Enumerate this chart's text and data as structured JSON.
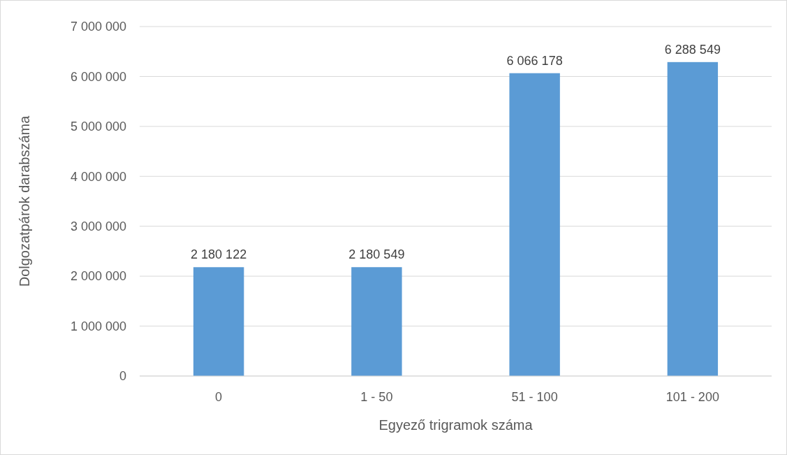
{
  "chart_data": {
    "type": "bar",
    "xlabel": "Egyező trigramok száma",
    "ylabel": "Dolgozatpárok darabszáma",
    "categories": [
      "0",
      "1 - 50",
      "51 - 100",
      "101 - 200"
    ],
    "values": [
      2180122,
      2180549,
      6066178,
      6288549
    ],
    "value_labels": [
      "2 180 122",
      "2 180 549",
      "6 066 178",
      "6 288 549"
    ],
    "color": "#5b9bd5",
    "ylim": [
      0,
      7000000
    ],
    "yticks": [
      {
        "value": 0,
        "label": "0"
      },
      {
        "value": 1000000,
        "label": "1 000 000"
      },
      {
        "value": 2000000,
        "label": "2 000 000"
      },
      {
        "value": 3000000,
        "label": "3 000 000"
      },
      {
        "value": 4000000,
        "label": "4 000 000"
      },
      {
        "value": 5000000,
        "label": "5 000 000"
      },
      {
        "value": 6000000,
        "label": "6 000 000"
      },
      {
        "value": 7000000,
        "label": "7 000 000"
      }
    ],
    "grid": "y"
  }
}
